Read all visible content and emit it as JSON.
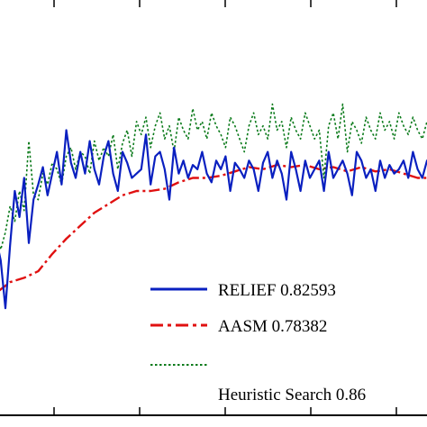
{
  "chart_data": {
    "type": "line",
    "title": "",
    "xlabel": "",
    "ylabel": "",
    "x_range": [
      0,
      100
    ],
    "y_range": [
      0.68,
      0.9
    ],
    "grid": false,
    "legend_placement": "bottom-right",
    "series": [
      {
        "name": "RELIEF  0.82593",
        "color": "#0a20c0",
        "style": "solid",
        "x": [
          0,
          1,
          2,
          3,
          4,
          5,
          6,
          7,
          8,
          9,
          10,
          11,
          12,
          13,
          14,
          15,
          16,
          17,
          18,
          19,
          20,
          21,
          22,
          23,
          24,
          25,
          26,
          27,
          28,
          29,
          30,
          31,
          32,
          33,
          34,
          35,
          36,
          37,
          38,
          39,
          40,
          41,
          42,
          43,
          44,
          45,
          46,
          47,
          48,
          49,
          50,
          51,
          52,
          53,
          54,
          55,
          56,
          57,
          58,
          59,
          60,
          61,
          62,
          63,
          64,
          65,
          66,
          67,
          68,
          69,
          70,
          71,
          72,
          73,
          74,
          75,
          76,
          77,
          78,
          79,
          80,
          81,
          82,
          83,
          84,
          85,
          86,
          87,
          88,
          89,
          90,
          91,
          92,
          93,
          94,
          95,
          96,
          97,
          98,
          99,
          100
        ],
        "y": [
          0.77,
          0.764,
          0.778,
          0.79,
          0.78,
          0.758,
          0.787,
          0.812,
          0.8,
          0.818,
          0.788,
          0.808,
          0.815,
          0.823,
          0.81,
          0.82,
          0.83,
          0.815,
          0.84,
          0.825,
          0.818,
          0.83,
          0.82,
          0.835,
          0.822,
          0.815,
          0.828,
          0.835,
          0.82,
          0.812,
          0.83,
          0.825,
          0.818,
          0.82,
          0.822,
          0.838,
          0.815,
          0.828,
          0.83,
          0.822,
          0.808,
          0.832,
          0.82,
          0.826,
          0.818,
          0.824,
          0.822,
          0.83,
          0.82,
          0.816,
          0.826,
          0.822,
          0.828,
          0.812,
          0.825,
          0.822,
          0.818,
          0.826,
          0.822,
          0.812,
          0.825,
          0.83,
          0.818,
          0.826,
          0.82,
          0.808,
          0.83,
          0.822,
          0.812,
          0.826,
          0.818,
          0.822,
          0.826,
          0.812,
          0.83,
          0.818,
          0.822,
          0.826,
          0.82,
          0.81,
          0.83,
          0.826,
          0.818,
          0.822,
          0.812,
          0.826,
          0.818,
          0.824,
          0.82,
          0.822,
          0.826,
          0.818,
          0.83,
          0.822,
          0.818,
          0.826,
          0.82,
          0.83,
          0.826,
          0.822,
          0.828
        ]
      },
      {
        "name": "AASM  0.78382",
        "color": "#e01010",
        "style": "dashdot",
        "x": [
          0,
          3,
          6,
          9,
          12,
          15,
          18,
          21,
          24,
          27,
          30,
          33,
          36,
          39,
          42,
          45,
          48,
          51,
          54,
          57,
          60,
          63,
          66,
          69,
          72,
          75,
          78,
          81,
          84,
          87,
          90,
          93,
          96,
          100
        ],
        "y": [
          0.76,
          0.765,
          0.77,
          0.772,
          0.775,
          0.783,
          0.79,
          0.796,
          0.802,
          0.806,
          0.81,
          0.812,
          0.812,
          0.813,
          0.816,
          0.818,
          0.818,
          0.819,
          0.821,
          0.823,
          0.822,
          0.824,
          0.823,
          0.824,
          0.822,
          0.823,
          0.821,
          0.823,
          0.821,
          0.822,
          0.82,
          0.818,
          0.818,
          0.82
        ]
      },
      {
        "name": "Heuristic Search  0.86",
        "color": "#0a7a1a",
        "style": "dotted",
        "x": [
          0,
          1,
          2,
          3,
          4,
          5,
          6,
          7,
          8,
          9,
          10,
          11,
          12,
          13,
          14,
          15,
          16,
          17,
          18,
          19,
          20,
          21,
          22,
          23,
          24,
          25,
          26,
          27,
          28,
          29,
          30,
          31,
          32,
          33,
          34,
          35,
          36,
          37,
          38,
          39,
          40,
          41,
          42,
          43,
          44,
          45,
          46,
          47,
          48,
          49,
          50,
          51,
          52,
          53,
          54,
          55,
          56,
          57,
          58,
          59,
          60,
          61,
          62,
          63,
          64,
          65,
          66,
          67,
          68,
          69,
          70,
          71,
          72,
          73,
          74,
          75,
          76,
          77,
          78,
          79,
          80,
          81,
          82,
          83,
          84,
          85,
          86,
          87,
          88,
          89,
          90,
          91,
          92,
          93,
          94,
          95,
          96,
          97,
          98,
          99,
          100
        ],
        "y": [
          0.78,
          0.785,
          0.778,
          0.79,
          0.785,
          0.793,
          0.805,
          0.798,
          0.812,
          0.803,
          0.835,
          0.81,
          0.808,
          0.82,
          0.815,
          0.825,
          0.822,
          0.815,
          0.828,
          0.832,
          0.822,
          0.83,
          0.828,
          0.82,
          0.835,
          0.826,
          0.832,
          0.828,
          0.838,
          0.822,
          0.834,
          0.84,
          0.828,
          0.844,
          0.838,
          0.846,
          0.832,
          0.842,
          0.848,
          0.836,
          0.842,
          0.83,
          0.846,
          0.84,
          0.836,
          0.85,
          0.84,
          0.844,
          0.836,
          0.848,
          0.842,
          0.838,
          0.832,
          0.846,
          0.842,
          0.836,
          0.83,
          0.842,
          0.848,
          0.838,
          0.842,
          0.836,
          0.852,
          0.84,
          0.844,
          0.832,
          0.846,
          0.84,
          0.836,
          0.848,
          0.842,
          0.836,
          0.84,
          0.818,
          0.842,
          0.848,
          0.836,
          0.852,
          0.83,
          0.844,
          0.84,
          0.834,
          0.846,
          0.84,
          0.836,
          0.848,
          0.84,
          0.844,
          0.836,
          0.848,
          0.842,
          0.838,
          0.846,
          0.84,
          0.836,
          0.844,
          0.84,
          0.848,
          0.842,
          0.838,
          0.846
        ]
      }
    ]
  }
}
